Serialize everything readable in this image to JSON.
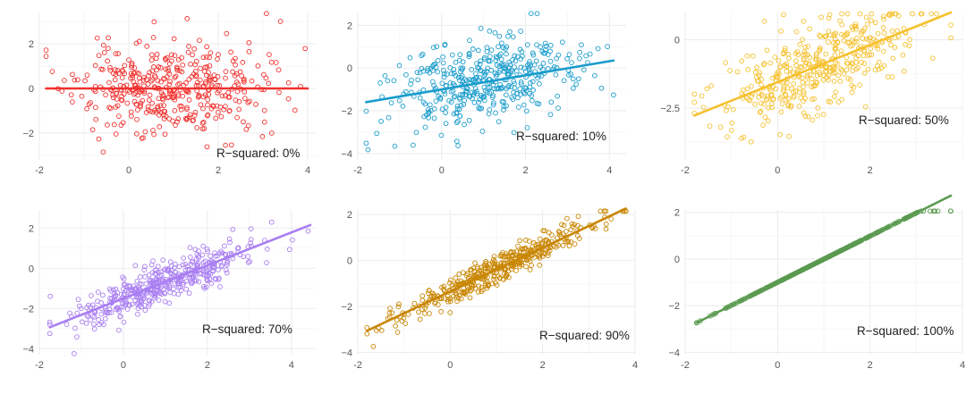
{
  "chart_data": [
    {
      "type": "scatter",
      "title": "",
      "xlabel": "",
      "ylabel": "",
      "color": "#f0312e",
      "xlim": [
        -2,
        4.2
      ],
      "ylim": [
        -3.2,
        3.4
      ],
      "xticks": [
        -2,
        0,
        2,
        4
      ],
      "yticks": [
        -2,
        0,
        2
      ],
      "n_points": 420,
      "x_mean": 0.9,
      "x_sd": 1.05,
      "fit": {
        "intercept": 0.0,
        "slope": 0.0,
        "x_range": [
          -1.85,
          4.0
        ]
      },
      "noise_sd": 1.0,
      "r_squared_label": "R−squared: 0%",
      "r_squared": 0.0,
      "seed": 11,
      "grid": true
    },
    {
      "type": "scatter",
      "title": "",
      "xlabel": "",
      "ylabel": "",
      "color": "#1a9ccc",
      "xlim": [
        -2,
        4.4
      ],
      "ylim": [
        -4.3,
        2.6
      ],
      "xticks": [
        -2,
        0,
        2,
        4
      ],
      "yticks": [
        -4,
        -2,
        0,
        2
      ],
      "n_points": 420,
      "x_mean": 0.95,
      "x_sd": 1.05,
      "fit": {
        "intercept": -1.0,
        "slope": 0.33,
        "x_range": [
          -1.8,
          4.1
        ]
      },
      "noise_sd": 1.0,
      "r_squared_label": "R−squared: 10%",
      "r_squared": 0.1,
      "seed": 23,
      "grid": true
    },
    {
      "type": "scatter",
      "title": "",
      "xlabel": "",
      "ylabel": "",
      "color": "#f6c12f",
      "xlim": [
        -2,
        4.0
      ],
      "ylim": [
        -4.4,
        1.0
      ],
      "xticks": [
        -2,
        0,
        2
      ],
      "yticks": [
        -2.5,
        0.0
      ],
      "n_points": 420,
      "x_mean": 0.95,
      "x_sd": 1.05,
      "fit": {
        "intercept": -1.55,
        "slope": 0.68,
        "x_range": [
          -1.8,
          3.75
        ]
      },
      "noise_sd": 0.78,
      "r_squared_label": "R−squared: 50%",
      "r_squared": 0.5,
      "seed": 37,
      "grid": true
    },
    {
      "type": "scatter",
      "title": "",
      "xlabel": "",
      "ylabel": "",
      "color": "#a97ef2",
      "xlim": [
        -2,
        4.6
      ],
      "ylim": [
        -4.3,
        2.9
      ],
      "xticks": [
        -2,
        0,
        2,
        4
      ],
      "yticks": [
        -4,
        -2,
        0,
        2
      ],
      "n_points": 420,
      "x_mean": 0.95,
      "x_sd": 1.05,
      "fit": {
        "intercept": -1.5,
        "slope": 0.82,
        "x_range": [
          -1.75,
          4.45
        ]
      },
      "noise_sd": 0.55,
      "r_squared_label": "R−squared: 70%",
      "r_squared": 0.7,
      "seed": 41,
      "grid": true
    },
    {
      "type": "scatter",
      "title": "",
      "xlabel": "",
      "ylabel": "",
      "color": "#c88500",
      "xlim": [
        -2,
        4.0
      ],
      "ylim": [
        -4.1,
        2.2
      ],
      "xticks": [
        -2,
        0,
        2,
        4
      ],
      "yticks": [
        -4,
        -2,
        0,
        2
      ],
      "n_points": 420,
      "x_mean": 0.95,
      "x_sd": 1.05,
      "fit": {
        "intercept": -1.35,
        "slope": 0.95,
        "x_range": [
          -1.8,
          3.8
        ]
      },
      "noise_sd": 0.32,
      "r_squared_label": "R−squared: 90%",
      "r_squared": 0.9,
      "seed": 53,
      "grid": true
    },
    {
      "type": "scatter",
      "title": "",
      "xlabel": "",
      "ylabel": "",
      "color": "#5a9a50",
      "xlim": [
        -2,
        4.0
      ],
      "ylim": [
        -4.1,
        2.1
      ],
      "xticks": [
        -2,
        0,
        2,
        4
      ],
      "yticks": [
        -4,
        -2,
        0,
        2
      ],
      "n_points": 420,
      "x_mean": 0.95,
      "x_sd": 1.05,
      "fit": {
        "intercept": -1.0,
        "slope": 0.99,
        "x_range": [
          -1.75,
          3.75
        ]
      },
      "noise_sd": 0.0,
      "r_squared_label": "R−squared: 100%",
      "r_squared": 1.0,
      "seed": 67,
      "grid": true
    }
  ]
}
